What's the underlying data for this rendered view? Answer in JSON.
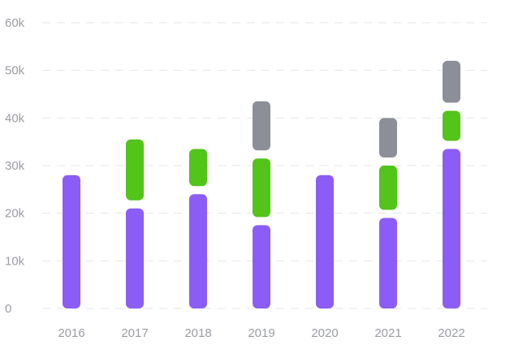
{
  "chart_data": {
    "type": "bar",
    "stacked": true,
    "categories": [
      "2016",
      "2017",
      "2018",
      "2019",
      "2020",
      "2021",
      "2022"
    ],
    "series": [
      {
        "values": [
          28000,
          21000,
          24000,
          17500,
          28000,
          19000,
          33500
        ],
        "color": "#8b5cf6"
      },
      {
        "values": [
          0,
          14500,
          9500,
          14000,
          0,
          11000,
          8000
        ],
        "color": "#52c41a"
      },
      {
        "values": [
          0,
          0,
          0,
          12000,
          0,
          10000,
          10500
        ],
        "color": "#8c8f97"
      }
    ],
    "y_ticks": [
      "0",
      "10k",
      "20k",
      "30k",
      "40k",
      "50k",
      "60k"
    ],
    "ylim": [
      0,
      60000
    ],
    "grid": true,
    "legend": false,
    "title": "",
    "xlabel": "",
    "ylabel": ""
  }
}
